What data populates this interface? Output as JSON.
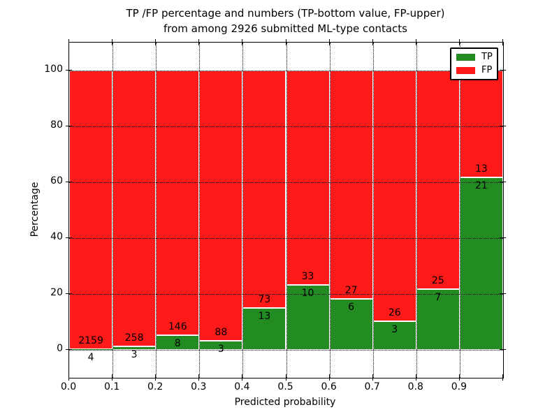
{
  "title": {
    "line1": "TP /FP percentage and numbers (TP-bottom value, FP-upper)",
    "line2": "from among 2926 submitted ML-type contacts"
  },
  "axes": {
    "xlabel": "Predicted probability",
    "ylabel": "Percentage",
    "xlim": [
      0.0,
      1.0
    ],
    "ylim": [
      -10,
      110
    ],
    "yticks": [
      0,
      20,
      40,
      60,
      80,
      100
    ],
    "xtick_labels": [
      "0.0",
      "0.1",
      "0.2",
      "0.3",
      "0.4",
      "0.5",
      "0.6",
      "0.7",
      "0.8",
      "0.9"
    ],
    "grid_style": "dotted"
  },
  "legend": {
    "position": "upper right",
    "entries": [
      {
        "label": "TP",
        "color": "#228b22"
      },
      {
        "label": "FP",
        "color": "#ff1a1a"
      }
    ]
  },
  "chart_data": {
    "type": "bar",
    "stacked": true,
    "normalized": "percent of bin total",
    "total_contacts": 2926,
    "bin_width": 0.1,
    "colors": {
      "tp": "#228b22",
      "fp": "#ff1a1a",
      "edge": "#ffffff"
    },
    "bins": [
      {
        "x0": 0.0,
        "x1": 0.1,
        "tp": 4,
        "fp": 2159,
        "tp_pct": 0.18
      },
      {
        "x0": 0.1,
        "x1": 0.2,
        "tp": 3,
        "fp": 258,
        "tp_pct": 1.15
      },
      {
        "x0": 0.2,
        "x1": 0.3,
        "tp": 8,
        "fp": 146,
        "tp_pct": 5.19
      },
      {
        "x0": 0.3,
        "x1": 0.4,
        "tp": 3,
        "fp": 88,
        "tp_pct": 3.3
      },
      {
        "x0": 0.4,
        "x1": 0.5,
        "tp": 13,
        "fp": 73,
        "tp_pct": 15.12
      },
      {
        "x0": 0.5,
        "x1": 0.6,
        "tp": 10,
        "fp": 33,
        "tp_pct": 23.26
      },
      {
        "x0": 0.6,
        "x1": 0.7,
        "tp": 6,
        "fp": 27,
        "tp_pct": 18.18
      },
      {
        "x0": 0.7,
        "x1": 0.8,
        "tp": 3,
        "fp": 26,
        "tp_pct": 10.34
      },
      {
        "x0": 0.8,
        "x1": 0.9,
        "tp": 7,
        "fp": 25,
        "tp_pct": 21.88
      },
      {
        "x0": 0.9,
        "x1": 1.0,
        "tp": 21,
        "fp": 13,
        "tp_pct": 61.76
      }
    ]
  }
}
